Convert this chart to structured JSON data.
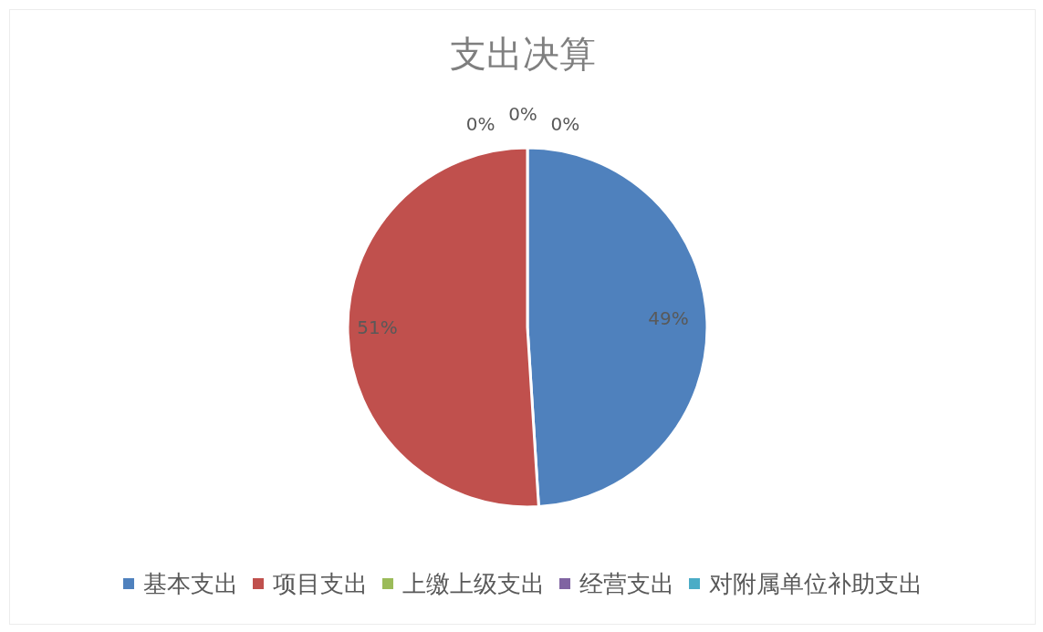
{
  "chart_data": {
    "type": "pie",
    "title": "支出决算",
    "categories": [
      "基本支出",
      "项目支出",
      "上缴上级支出",
      "经营支出",
      "对附属单位补助支出"
    ],
    "values": [
      49,
      51,
      0,
      0,
      0
    ],
    "colors": [
      "#4f81bd",
      "#c0504d",
      "#9bbb59",
      "#8064a2",
      "#4bacc6"
    ],
    "value_labels": [
      "49%",
      "51%",
      "0%",
      "0%",
      "0%"
    ],
    "legend": "bottom"
  }
}
